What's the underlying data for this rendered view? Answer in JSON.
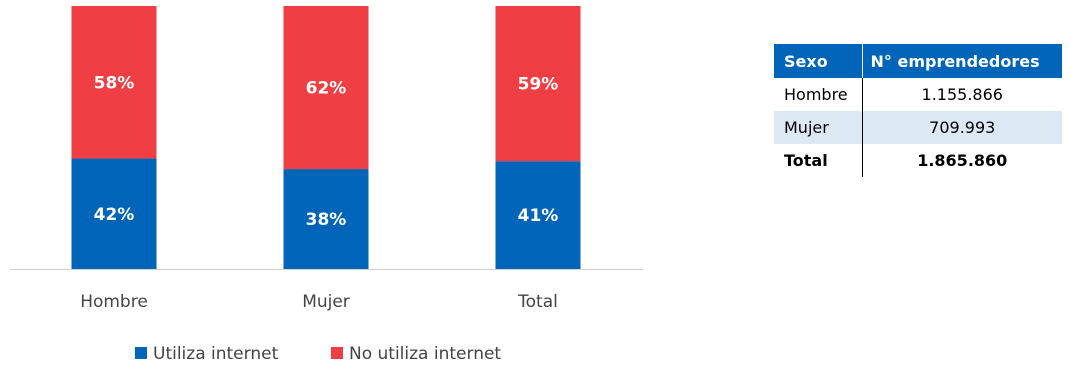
{
  "chart_data": {
    "type": "bar",
    "stacked": true,
    "normalized": true,
    "categories": [
      "Hombre",
      "Mujer",
      "Total"
    ],
    "series": [
      {
        "name": "Utiliza internet",
        "color": "#0065b8",
        "values": [
          42,
          38,
          41
        ],
        "labels": [
          "42%",
          "38%",
          "41%"
        ]
      },
      {
        "name": "No utiliza internet",
        "color": "#ef3f44",
        "values": [
          58,
          62,
          59
        ],
        "labels": [
          "58%",
          "62%",
          "59%"
        ]
      }
    ],
    "ylim": [
      0,
      100
    ],
    "grid": false,
    "legend": "bottom",
    "title": "",
    "xlabel": "",
    "ylabel": ""
  },
  "table": {
    "headers": [
      "Sexo",
      "N° emprendedores"
    ],
    "rows": [
      {
        "sexo": "Hombre",
        "value": "1.155.866"
      },
      {
        "sexo": "Mujer",
        "value": "709.993"
      },
      {
        "sexo": "Total",
        "value": "1.865.860"
      }
    ],
    "header_color": "#0065b8",
    "alt_row_color": "#dce9f5"
  }
}
